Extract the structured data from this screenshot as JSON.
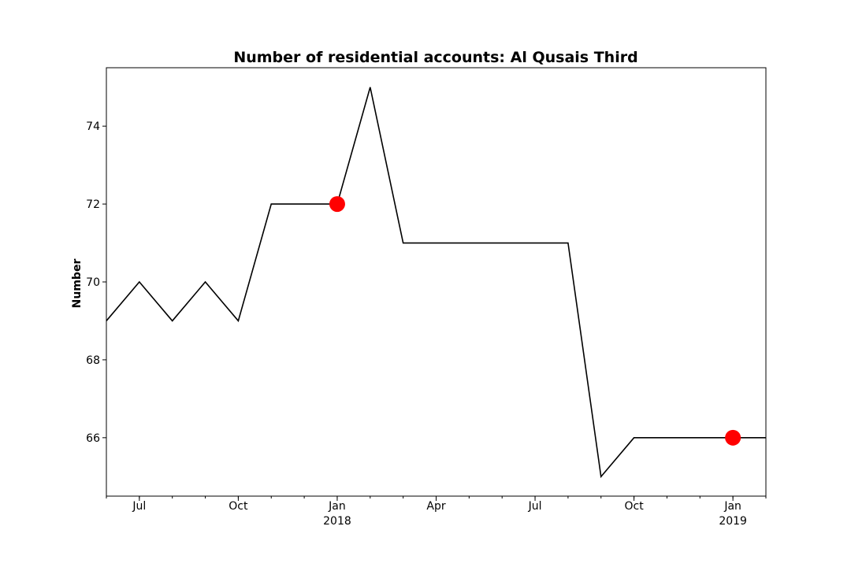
{
  "chart_data": {
    "type": "line",
    "title": "Number of residential accounts: Al Qusais Third",
    "xlabel": "",
    "ylabel": "Number",
    "x": [
      "2017-06",
      "2017-07",
      "2017-08",
      "2017-09",
      "2017-10",
      "2017-11",
      "2017-12",
      "2018-01",
      "2018-02",
      "2018-03",
      "2018-04",
      "2018-05",
      "2018-06",
      "2018-07",
      "2018-08",
      "2018-09",
      "2018-10",
      "2018-11",
      "2018-12",
      "2019-01",
      "2019-02"
    ],
    "series": [
      {
        "values": [
          69,
          70,
          69,
          70,
          69,
          72,
          72,
          72,
          75,
          71,
          71,
          71,
          71,
          71,
          71,
          65,
          66,
          66,
          66,
          66,
          66
        ],
        "color": "#000000"
      }
    ],
    "highlight_points": [
      {
        "x": "2018-01",
        "y": 72
      },
      {
        "x": "2019-01",
        "y": 66
      }
    ],
    "highlight_color": "#ff0000",
    "xlim": [
      "2017-06",
      "2019-02"
    ],
    "ylim": [
      64.5,
      75.5
    ],
    "y_ticks": [
      "66",
      "68",
      "70",
      "72",
      "74"
    ],
    "x_major_ticks": [
      {
        "x": "2017-07",
        "label": "Jul",
        "sublabel": ""
      },
      {
        "x": "2017-10",
        "label": "Oct",
        "sublabel": ""
      },
      {
        "x": "2018-01",
        "label": "Jan",
        "sublabel": "2018"
      },
      {
        "x": "2018-04",
        "label": "Apr",
        "sublabel": ""
      },
      {
        "x": "2018-07",
        "label": "Jul",
        "sublabel": ""
      },
      {
        "x": "2018-10",
        "label": "Oct",
        "sublabel": ""
      },
      {
        "x": "2019-01",
        "label": "Jan",
        "sublabel": "2019"
      }
    ],
    "grid": false,
    "legend": "none"
  }
}
